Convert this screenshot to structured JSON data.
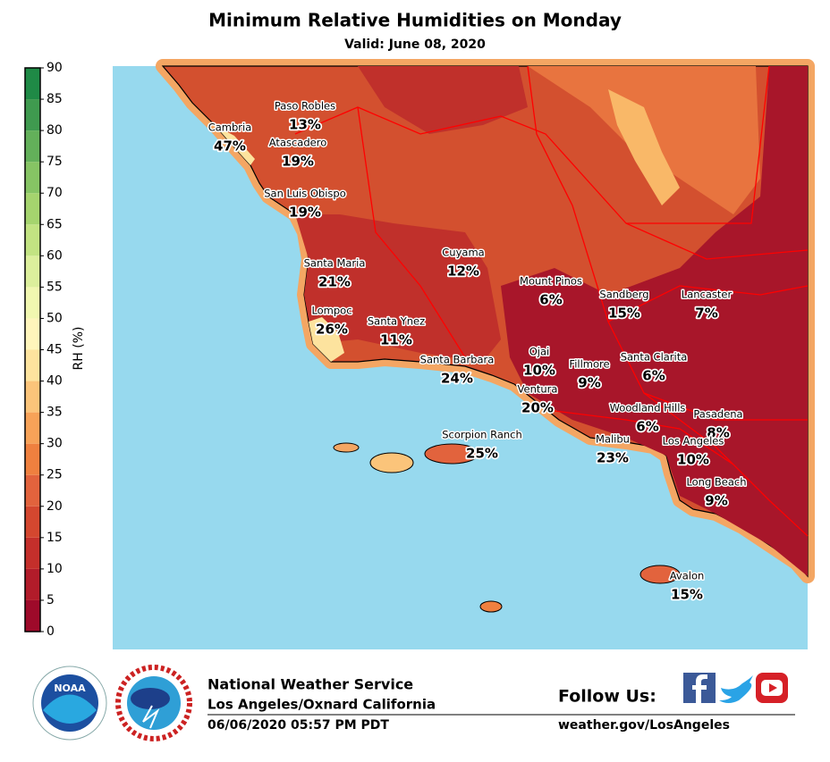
{
  "header": {
    "title": "Minimum Relative Humidities on Monday",
    "subtitle": "Valid: June 08, 2020"
  },
  "colorbar": {
    "label": "RH (%)",
    "ticks": [
      0,
      5,
      10,
      15,
      20,
      25,
      30,
      35,
      40,
      45,
      50,
      55,
      60,
      65,
      70,
      75,
      80,
      85,
      90
    ],
    "colors": [
      "#9e0a2a",
      "#b21c2a",
      "#c42f2b",
      "#d4472f",
      "#e2633d",
      "#ef803f",
      "#f7a258",
      "#fbc47a",
      "#fde39e",
      "#fff5bb",
      "#f1f7b0",
      "#dcef9c",
      "#c2e382",
      "#a5d46e",
      "#86c464",
      "#63b05a",
      "#3f9a4f",
      "#1f8a46"
    ]
  },
  "stations": {
    "names": [
      "Paso Robles",
      "Cambria",
      "Atascadero",
      "San Luis Obispo",
      "Cuyama",
      "Santa Maria",
      "Mount Pinos",
      "Sandberg",
      "Lancaster",
      "Lompoc",
      "Santa Ynez",
      "Ojai",
      "Santa Barbara",
      "Fillmore",
      "Santa Clarita",
      "Ventura",
      "Woodland Hills",
      "Pasadena",
      "Scorpion Ranch",
      "Malibu",
      "Los Angeles",
      "Long Beach",
      "Avalon"
    ],
    "values": [
      13,
      47,
      19,
      19,
      12,
      21,
      6,
      15,
      7,
      26,
      11,
      10,
      24,
      9,
      6,
      20,
      6,
      8,
      25,
      23,
      10,
      9,
      15
    ],
    "value_labels": [
      "13%",
      "47%",
      "19%",
      "19%",
      "12%",
      "21%",
      "6%",
      "15%",
      "7%",
      "26%",
      "11%",
      "10%",
      "24%",
      "9%",
      "6%",
      "20%",
      "6%",
      "8%",
      "25%",
      "23%",
      "10%",
      "9%",
      "15%"
    ]
  },
  "footer": {
    "logo": "NOAA",
    "agency": "National Weather Service",
    "office": "Los Angeles/Oxnard California",
    "timestamp": "06/06/2020 05:57 PM PDT",
    "follow": "Follow Us:",
    "url": "weather.gov/LosAngeles"
  }
}
